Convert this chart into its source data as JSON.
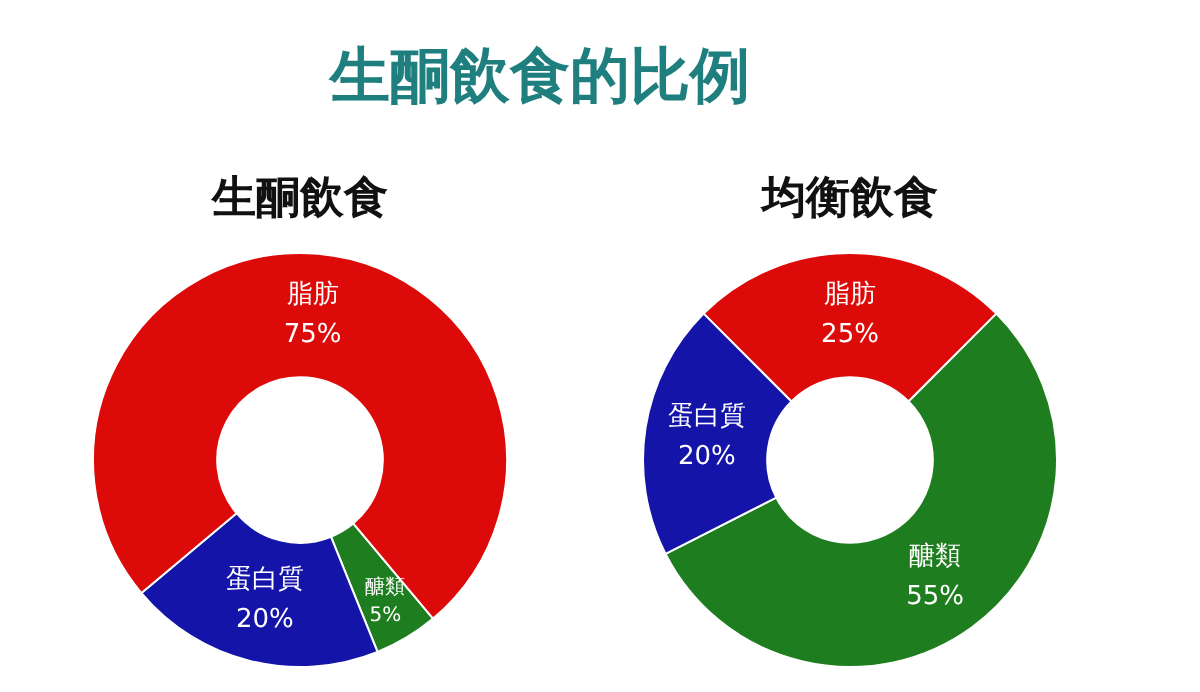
{
  "chart_data": [
    {
      "type": "other",
      "title": "生酮飲食的比例"
    },
    {
      "type": "donut",
      "title": "生酮飲食",
      "categories": [
        "醣類",
        "蛋白質",
        "脂肪"
      ],
      "values": [
        5,
        20,
        75
      ],
      "value_labels": [
        "5%",
        "20%",
        "75%"
      ],
      "colors": [
        "#1e7d1e",
        "#1414a8",
        "#dd0a0a"
      ]
    },
    {
      "type": "donut",
      "title": "均衡飲食",
      "categories": [
        "脂肪",
        "醣類",
        "蛋白質"
      ],
      "values": [
        25,
        55,
        20
      ],
      "value_labels": [
        "25%",
        "55%",
        "20%"
      ],
      "colors": [
        "#dd0a0a",
        "#1e7d1e",
        "#1414a8"
      ]
    }
  ]
}
